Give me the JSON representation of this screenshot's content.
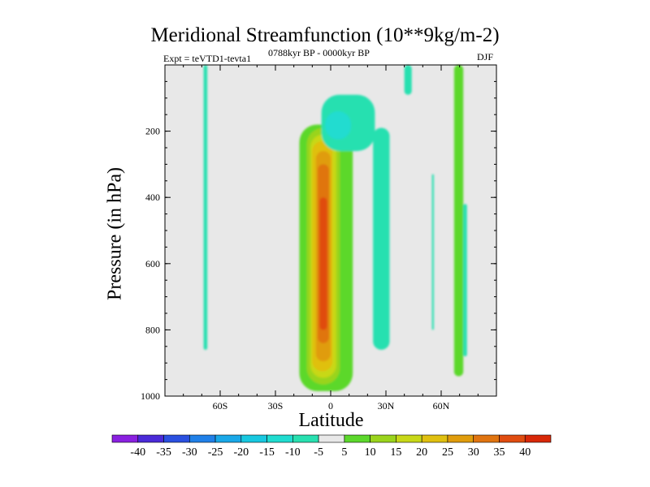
{
  "chart_data": {
    "type": "heatmap",
    "title": "Meridional Streamfunction (10**9kg/m-2)",
    "subtitle_left": "Expt = teVTD1-tevta1",
    "subtitle_center": "0788kyr BP - 0000kyr BP",
    "subtitle_right": "DJF",
    "xlabel": "Latitude",
    "ylabel": "Pressure (in hPa)",
    "xlim": [
      -90,
      90
    ],
    "ylim": [
      1000,
      0
    ],
    "x_ticks": [
      {
        "value": -60,
        "label": "60S"
      },
      {
        "value": -30,
        "label": "30S"
      },
      {
        "value": 0,
        "label": "0"
      },
      {
        "value": 30,
        "label": "30N"
      },
      {
        "value": 60,
        "label": "60N"
      }
    ],
    "y_ticks": [
      {
        "value": 200,
        "label": "200"
      },
      {
        "value": 400,
        "label": "400"
      },
      {
        "value": 600,
        "label": "600"
      },
      {
        "value": 800,
        "label": "800"
      },
      {
        "value": 1000,
        "label": "1000"
      }
    ],
    "background_color": "#e8e8e8",
    "colorbar": {
      "levels": [
        "-40",
        "-35",
        "-30",
        "-25",
        "-20",
        "-15",
        "-10",
        "-5",
        "5",
        "10",
        "15",
        "20",
        "25",
        "30",
        "35",
        "40"
      ],
      "colors": [
        "#8a20e0",
        "#4a2ad8",
        "#2a50e0",
        "#2080e8",
        "#1aa8e8",
        "#18c8e0",
        "#20dcd0",
        "#28e0b0",
        "#e8e8e8",
        "#5cd82c",
        "#9ad41c",
        "#c8d818",
        "#e0c010",
        "#e09c0c",
        "#e07410",
        "#e04c10",
        "#d82808"
      ]
    },
    "features": [
      {
        "name": "positive-cell-15",
        "lat": [
          -17,
          12
        ],
        "p": [
          180,
          985
        ],
        "color": "#5cd82c"
      },
      {
        "name": "positive-cell-20",
        "lat": [
          -13,
          5
        ],
        "p": [
          190,
          965
        ],
        "color": "#9ad41c"
      },
      {
        "name": "positive-cell-25",
        "lat": [
          -11,
          3
        ],
        "p": [
          210,
          945
        ],
        "color": "#c8d818"
      },
      {
        "name": "positive-cell-30",
        "lat": [
          -10,
          1
        ],
        "p": [
          230,
          925
        ],
        "color": "#e0c010"
      },
      {
        "name": "positive-cell-35",
        "lat": [
          -8,
          0
        ],
        "p": [
          260,
          895
        ],
        "color": "#e09c0c"
      },
      {
        "name": "positive-cell-40",
        "lat": [
          -7,
          -1
        ],
        "p": [
          300,
          840
        ],
        "color": "#e07410"
      },
      {
        "name": "positive-core",
        "lat": [
          -6,
          -2
        ],
        "p": [
          400,
          800
        ],
        "color": "#e04c10"
      },
      {
        "name": "upper-negative-cell",
        "lat": [
          -5,
          24
        ],
        "p": [
          90,
          260
        ],
        "color": "#28e0b0"
      },
      {
        "name": "upper-negative-core",
        "lat": [
          -3,
          11
        ],
        "p": [
          140,
          225
        ],
        "color": "#20dcd0"
      },
      {
        "name": "sh-high-lat-negative",
        "lat": [
          -69,
          -67
        ],
        "p": [
          0,
          860
        ],
        "color": "#28e0b0"
      },
      {
        "name": "nh-30n-negative",
        "lat": [
          23,
          32
        ],
        "p": [
          190,
          860
        ],
        "color": "#28e0b0"
      },
      {
        "name": "nh-40n-negative",
        "lat": [
          40,
          44
        ],
        "p": [
          0,
          90
        ],
        "color": "#28e0b0"
      },
      {
        "name": "nh-55n-negative",
        "lat": [
          55,
          56
        ],
        "p": [
          330,
          800
        ],
        "color": "#28e0b0"
      },
      {
        "name": "nh-65n-positive",
        "lat": [
          67,
          72
        ],
        "p": [
          0,
          940
        ],
        "color": "#5cd82c"
      },
      {
        "name": "nh-70n-negative",
        "lat": [
          72,
          74
        ],
        "p": [
          420,
          880
        ],
        "color": "#28e0b0"
      }
    ]
  }
}
